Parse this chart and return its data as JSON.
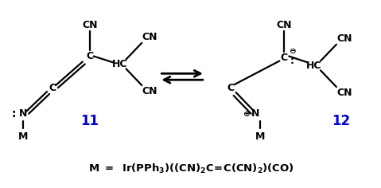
{
  "figsize": [
    4.79,
    2.36
  ],
  "dpi": 100,
  "bg_color": "white",
  "text_color": "black",
  "blue_color": "#0000CC",
  "label_11": "11",
  "label_12": "12",
  "fs": 9.0,
  "lw": 1.6,
  "xlim": [
    0,
    479
  ],
  "ylim": [
    0,
    236
  ]
}
